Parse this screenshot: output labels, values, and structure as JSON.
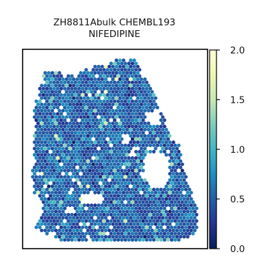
{
  "chart_data": {
    "type": "scatter",
    "title_lines": [
      "ZH8811Abulk CHEMBL193",
      "NIFEDIPINE"
    ],
    "xlabel": "",
    "ylabel": "",
    "colorbar": {
      "min": 0.0,
      "max": 2.0,
      "ticks": [
        0.0,
        0.5,
        1.0,
        1.5,
        2.0
      ],
      "tick_labels": [
        "0.0",
        "0.5",
        "1.0",
        "1.5",
        "2.0"
      ],
      "colormap": "YlGnBu_r",
      "colors": [
        "#081d58",
        "#253494",
        "#225ea8",
        "#1d91c0",
        "#41b6c4",
        "#7fcdbb",
        "#c7e9b4",
        "#edf8b1",
        "#ffffd9"
      ]
    },
    "grid": false,
    "legend": "none",
    "point_shape": "hexagonal spots",
    "typical_value_range": [
      0.2,
      0.8
    ]
  }
}
